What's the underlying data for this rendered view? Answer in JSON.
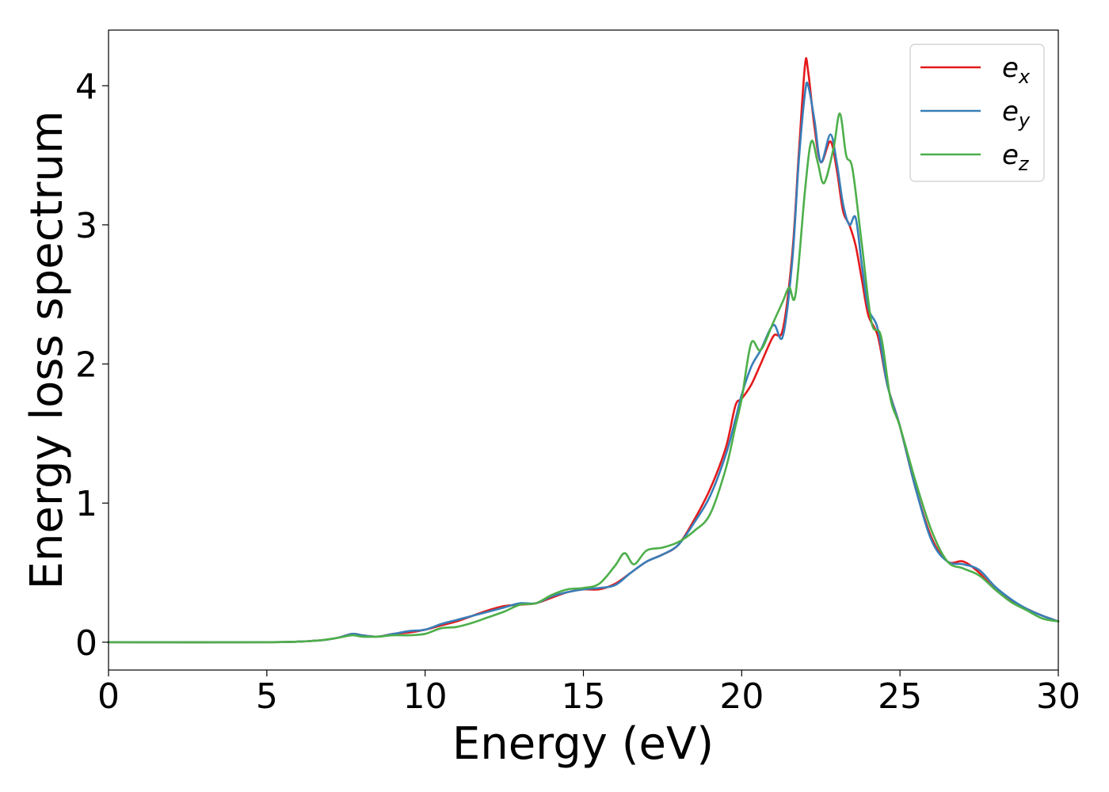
{
  "chart_data": {
    "type": "line",
    "title": "",
    "xlabel": "Energy (eV)",
    "ylabel": "Energy loss spectrum",
    "xlim": [
      0,
      30
    ],
    "ylim": [
      -0.2,
      4.4
    ],
    "xticks": [
      0,
      5,
      10,
      15,
      20,
      25,
      30
    ],
    "xtick_labels": [
      "0",
      "5",
      "10",
      "15",
      "20",
      "25",
      "30"
    ],
    "yticks": [
      0,
      1,
      2,
      3,
      4
    ],
    "ytick_labels": [
      "0",
      "1",
      "2",
      "3",
      "4"
    ],
    "grid": false,
    "legend": {
      "position": "top-right",
      "entries": [
        {
          "base": "e",
          "sub": "x"
        },
        {
          "base": "e",
          "sub": "y"
        },
        {
          "base": "e",
          "sub": "z"
        }
      ]
    },
    "series": [
      {
        "name": "e_x",
        "color": "#e41a1c",
        "x": [
          0,
          5,
          6.5,
          7.2,
          7.7,
          8.0,
          8.5,
          9.0,
          9.5,
          10.0,
          10.5,
          11.0,
          11.5,
          12.0,
          12.5,
          13.0,
          13.5,
          14.0,
          14.5,
          15.0,
          15.5,
          16.0,
          16.5,
          17.0,
          17.5,
          18.0,
          18.5,
          19.0,
          19.5,
          19.8,
          20.0,
          20.3,
          20.6,
          21.0,
          21.3,
          21.6,
          21.8,
          22.0,
          22.1,
          22.3,
          22.5,
          22.8,
          23.0,
          23.2,
          23.4,
          23.6,
          23.8,
          24.0,
          24.3,
          24.6,
          25.0,
          25.5,
          26.0,
          26.5,
          27.0,
          27.5,
          28.0,
          28.5,
          29.0,
          29.5,
          30.0
        ],
        "y": [
          0,
          0.0,
          0.01,
          0.03,
          0.06,
          0.05,
          0.04,
          0.06,
          0.07,
          0.09,
          0.12,
          0.15,
          0.19,
          0.23,
          0.26,
          0.27,
          0.28,
          0.32,
          0.36,
          0.38,
          0.38,
          0.42,
          0.5,
          0.58,
          0.63,
          0.7,
          0.88,
          1.1,
          1.4,
          1.7,
          1.75,
          1.85,
          2.0,
          2.2,
          2.25,
          2.8,
          3.5,
          4.15,
          4.1,
          3.7,
          3.45,
          3.6,
          3.4,
          3.1,
          3.0,
          2.85,
          2.6,
          2.35,
          2.2,
          1.85,
          1.55,
          1.1,
          0.75,
          0.58,
          0.58,
          0.5,
          0.38,
          0.3,
          0.24,
          0.19,
          0.15
        ]
      },
      {
        "name": "e_y",
        "color": "#377eb8",
        "x": [
          0,
          5,
          6.5,
          7.2,
          7.7,
          8.0,
          8.5,
          9.0,
          9.5,
          10.0,
          10.5,
          11.0,
          11.5,
          12.0,
          12.5,
          13.0,
          13.5,
          14.0,
          14.5,
          15.0,
          15.5,
          16.0,
          16.5,
          17.0,
          17.5,
          18.0,
          18.5,
          19.0,
          19.5,
          19.8,
          20.0,
          20.3,
          20.6,
          21.0,
          21.3,
          21.6,
          21.8,
          22.0,
          22.1,
          22.3,
          22.5,
          22.8,
          23.0,
          23.2,
          23.4,
          23.6,
          23.8,
          24.0,
          24.3,
          24.6,
          25.0,
          25.5,
          26.0,
          26.5,
          27.0,
          27.5,
          28.0,
          28.5,
          29.0,
          29.5,
          30.0
        ],
        "y": [
          0,
          0.0,
          0.01,
          0.03,
          0.06,
          0.05,
          0.04,
          0.06,
          0.08,
          0.09,
          0.13,
          0.16,
          0.19,
          0.22,
          0.25,
          0.28,
          0.28,
          0.33,
          0.36,
          0.38,
          0.39,
          0.41,
          0.5,
          0.58,
          0.63,
          0.7,
          0.86,
          1.05,
          1.35,
          1.6,
          1.78,
          1.98,
          2.1,
          2.28,
          2.2,
          2.75,
          3.45,
          3.95,
          4.0,
          3.75,
          3.45,
          3.65,
          3.45,
          3.15,
          3.0,
          3.05,
          2.7,
          2.4,
          2.25,
          1.85,
          1.55,
          1.1,
          0.73,
          0.58,
          0.56,
          0.52,
          0.4,
          0.31,
          0.24,
          0.19,
          0.15
        ]
      },
      {
        "name": "e_z",
        "color": "#4daf4a",
        "x": [
          0,
          5,
          6.5,
          7.2,
          7.7,
          8.0,
          8.5,
          9.0,
          9.5,
          10.0,
          10.5,
          11.0,
          11.5,
          12.0,
          12.5,
          13.0,
          13.5,
          14.0,
          14.5,
          15.0,
          15.5,
          16.0,
          16.3,
          16.6,
          17.0,
          17.5,
          18.0,
          18.5,
          19.0,
          19.5,
          19.8,
          20.0,
          20.3,
          20.6,
          21.0,
          21.3,
          21.5,
          21.7,
          22.0,
          22.2,
          22.4,
          22.6,
          22.9,
          23.1,
          23.3,
          23.5,
          23.8,
          24.1,
          24.4,
          24.7,
          25.0,
          25.5,
          26.0,
          26.5,
          27.0,
          27.5,
          28.0,
          28.5,
          29.0,
          29.5,
          30.0
        ],
        "y": [
          0,
          0.0,
          0.01,
          0.03,
          0.05,
          0.04,
          0.04,
          0.05,
          0.05,
          0.06,
          0.1,
          0.11,
          0.14,
          0.18,
          0.22,
          0.27,
          0.28,
          0.34,
          0.38,
          0.39,
          0.42,
          0.55,
          0.64,
          0.56,
          0.66,
          0.68,
          0.72,
          0.8,
          0.92,
          1.25,
          1.55,
          1.75,
          2.15,
          2.1,
          2.3,
          2.45,
          2.55,
          2.5,
          3.25,
          3.6,
          3.45,
          3.3,
          3.55,
          3.8,
          3.5,
          3.4,
          2.85,
          2.3,
          2.2,
          1.75,
          1.55,
          1.15,
          0.8,
          0.58,
          0.53,
          0.48,
          0.38,
          0.29,
          0.23,
          0.17,
          0.15
        ]
      }
    ]
  }
}
